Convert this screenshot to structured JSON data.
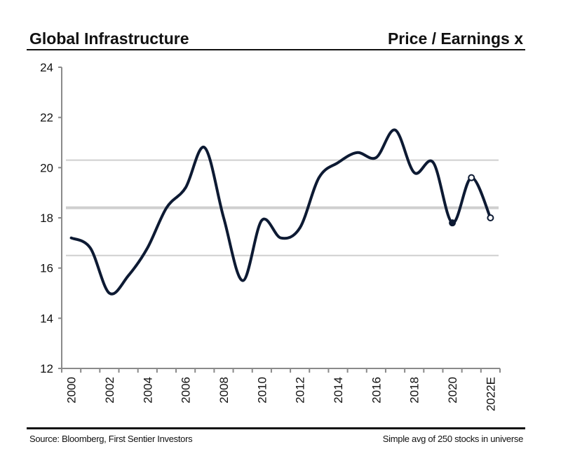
{
  "header": {
    "title": "Global Infrastructure",
    "subtitle": "Price / Earnings x"
  },
  "footer": {
    "source": "Source: Bloomberg, First Sentier Investors",
    "note": "Simple avg of 250 stocks in universe"
  },
  "colors": {
    "line": "#0d1a33",
    "reference": "#cfcfcf",
    "axis": "#8a8a8a"
  },
  "chart_data": {
    "type": "line",
    "title": "Global Infrastructure",
    "ylabel": "Price / Earnings x",
    "xlabel": "",
    "ylim": [
      12,
      24
    ],
    "yticks": [
      12,
      14,
      16,
      18,
      20,
      22,
      24
    ],
    "x": [
      "2000",
      "2001",
      "2002",
      "2003",
      "2004",
      "2005",
      "2006",
      "2007",
      "2008",
      "2009",
      "2010",
      "2011",
      "2012",
      "2013",
      "2014",
      "2015",
      "2016",
      "2017",
      "2018",
      "2019",
      "2020",
      "2021",
      "2022E"
    ],
    "xtick_labels": [
      "2000",
      "2002",
      "2004",
      "2006",
      "2008",
      "2010",
      "2012",
      "2014",
      "2016",
      "2018",
      "2020",
      "2022E"
    ],
    "series": [
      {
        "name": "P/E",
        "values": [
          17.2,
          16.8,
          15.0,
          15.7,
          16.8,
          18.4,
          19.2,
          20.8,
          18.0,
          15.5,
          17.9,
          17.2,
          17.6,
          19.6,
          20.2,
          20.6,
          20.4,
          21.5,
          19.8,
          20.2,
          17.8,
          19.6,
          18.0
        ]
      }
    ],
    "markers": [
      {
        "x": "2020",
        "value": 17.8,
        "style": "filled"
      },
      {
        "x": "2021",
        "value": 19.6,
        "style": "hollow"
      },
      {
        "x": "2022E",
        "value": 18.0,
        "style": "hollow"
      }
    ],
    "reference_lines": [
      {
        "name": "plus-one-std",
        "value": 20.3
      },
      {
        "name": "mean",
        "value": 18.4
      },
      {
        "name": "minus-one-std",
        "value": 16.5
      }
    ],
    "grid": false,
    "legend": "none"
  }
}
